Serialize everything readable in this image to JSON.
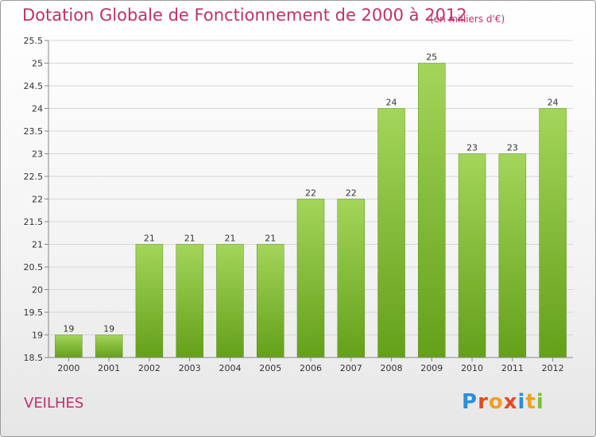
{
  "chart_data": {
    "type": "bar",
    "title": "Dotation Globale de Fonctionnement de 2000 à 2012",
    "subtitle": "(en milliers d'€)",
    "xlabel": "",
    "ylabel": "",
    "categories": [
      "2000",
      "2001",
      "2002",
      "2003",
      "2004",
      "2005",
      "2006",
      "2007",
      "2008",
      "2009",
      "2010",
      "2011",
      "2012"
    ],
    "values": [
      19,
      19,
      21,
      21,
      21,
      21,
      22,
      22,
      24,
      25,
      23,
      23,
      24
    ],
    "data_labels": [
      "19",
      "19",
      "21",
      "21",
      "21",
      "21",
      "22",
      "22",
      "24",
      "25",
      "23",
      "23",
      "24"
    ],
    "ylim": [
      18.5,
      25.5
    ],
    "yticks": [
      "18.5",
      "19",
      "19.5",
      "20",
      "20.5",
      "21",
      "21.5",
      "22",
      "22.5",
      "23",
      "23.5",
      "24",
      "24.5",
      "25",
      "25.5"
    ],
    "grid": true,
    "bar_color": "#7cbf33"
  },
  "footer": {
    "commune": "VEILHES",
    "logo": "Proxiti"
  },
  "colors": {
    "accent": "#c0306a",
    "bar_top": "#a3d55a",
    "bar_bottom": "#64a01a"
  }
}
